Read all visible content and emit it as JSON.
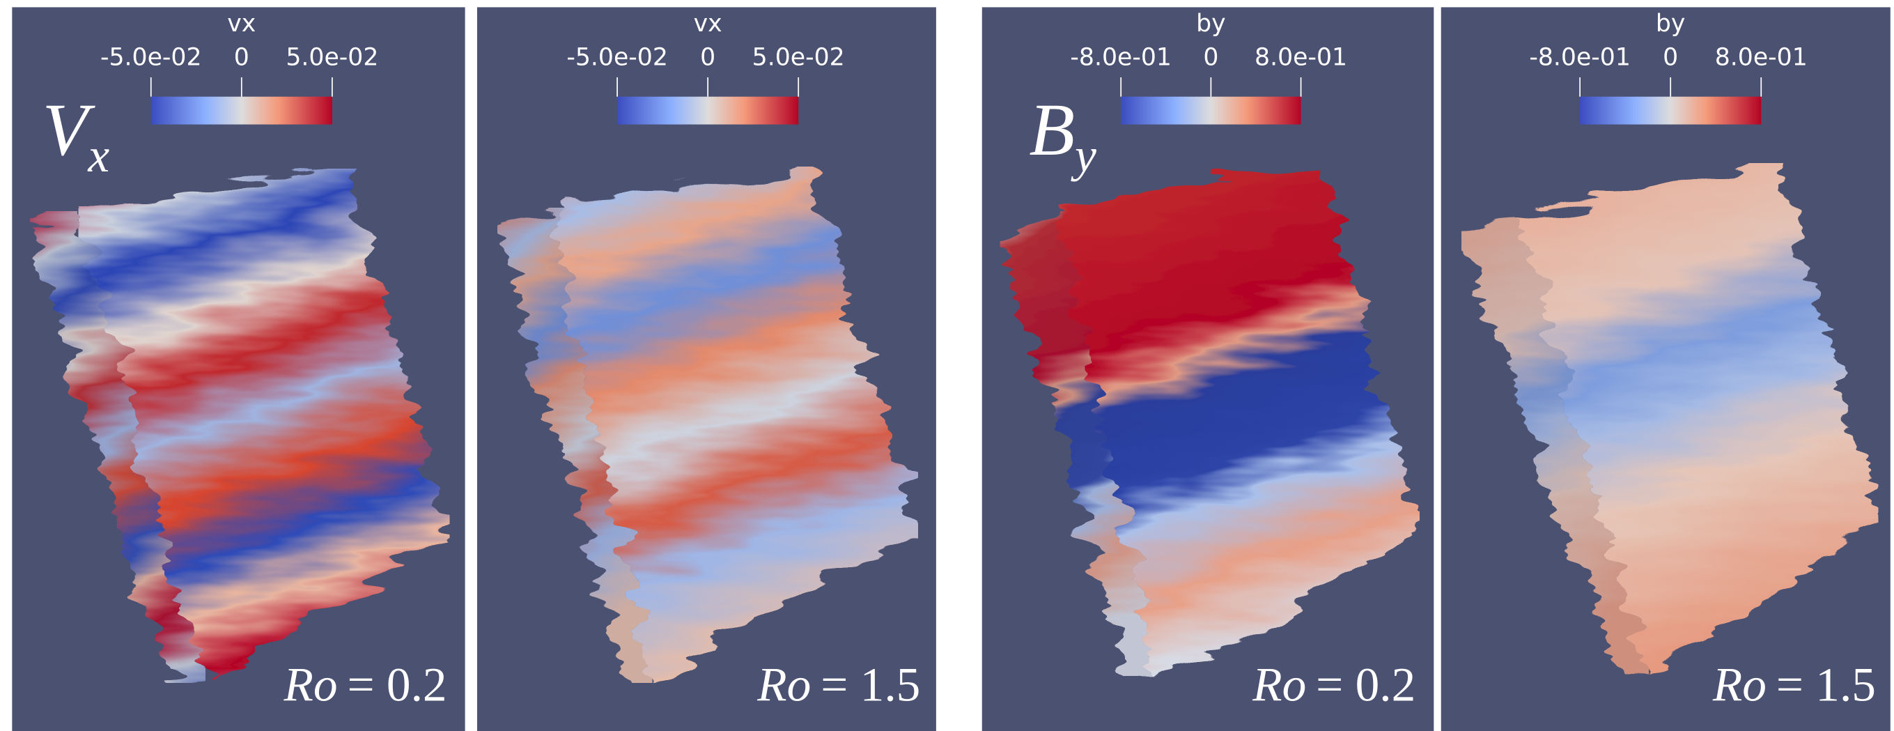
{
  "panels": [
    {
      "colorbar": {
        "title": "vx",
        "ticks": [
          "-5.0e-02",
          "0",
          "5.0e-02"
        ]
      },
      "label": {
        "main": "V",
        "sub": "x"
      },
      "ro": {
        "symbol": "Ro",
        "value": "= 0.2"
      }
    },
    {
      "colorbar": {
        "title": "vx",
        "ticks": [
          "-5.0e-02",
          "0",
          "5.0e-02"
        ]
      },
      "ro": {
        "symbol": "Ro",
        "value": "= 1.5"
      }
    },
    {
      "colorbar": {
        "title": "by",
        "ticks": [
          "-8.0e-01",
          "0",
          "8.0e-01"
        ]
      },
      "label": {
        "main": "B",
        "sub": "y"
      },
      "ro": {
        "symbol": "Ro",
        "value": "= 0.2"
      }
    },
    {
      "colorbar": {
        "title": "by",
        "ticks": [
          "-8.0e-01",
          "0",
          "8.0e-01"
        ]
      },
      "ro": {
        "symbol": "Ro",
        "value": "= 1.5"
      }
    }
  ]
}
